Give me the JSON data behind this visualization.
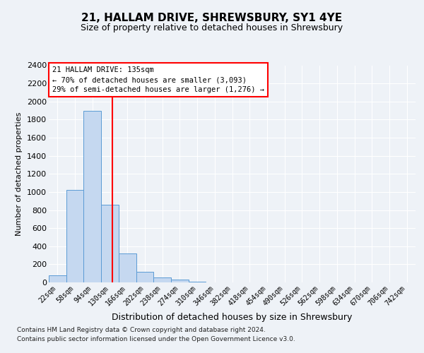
{
  "title": "21, HALLAM DRIVE, SHREWSBURY, SY1 4YE",
  "subtitle": "Size of property relative to detached houses in Shrewsbury",
  "xlabel": "Distribution of detached houses by size in Shrewsbury",
  "ylabel": "Number of detached properties",
  "categories": [
    "22sqm",
    "58sqm",
    "94sqm",
    "130sqm",
    "166sqm",
    "202sqm",
    "238sqm",
    "274sqm",
    "310sqm",
    "346sqm",
    "382sqm",
    "418sqm",
    "454sqm",
    "490sqm",
    "526sqm",
    "562sqm",
    "598sqm",
    "634sqm",
    "670sqm",
    "706sqm",
    "742sqm"
  ],
  "values": [
    80,
    1020,
    1900,
    860,
    320,
    115,
    55,
    30,
    10,
    0,
    0,
    0,
    0,
    0,
    0,
    0,
    0,
    0,
    0,
    0,
    0
  ],
  "bar_color": "#c5d8f0",
  "bar_edge_color": "#5b9bd5",
  "vline_color": "red",
  "vline_position": 3.14,
  "annotation_text": "21 HALLAM DRIVE: 135sqm\n← 70% of detached houses are smaller (3,093)\n29% of semi-detached houses are larger (1,276) →",
  "annotation_box_color": "white",
  "annotation_box_edge": "red",
  "ylim": [
    0,
    2400
  ],
  "yticks": [
    0,
    200,
    400,
    600,
    800,
    1000,
    1200,
    1400,
    1600,
    1800,
    2000,
    2200,
    2400
  ],
  "footer_line1": "Contains HM Land Registry data © Crown copyright and database right 2024.",
  "footer_line2": "Contains public sector information licensed under the Open Government Licence v3.0.",
  "background_color": "#eef2f7",
  "grid_color": "#ffffff"
}
